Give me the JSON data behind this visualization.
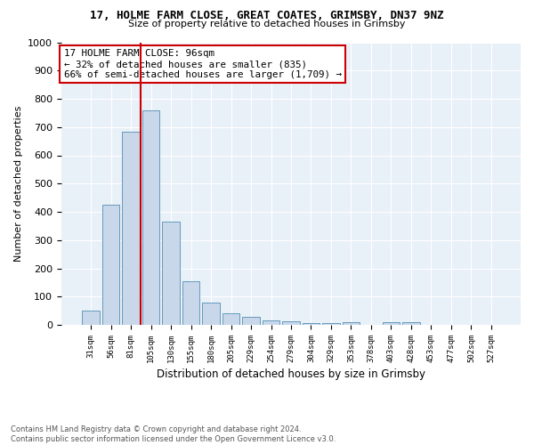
{
  "title1": "17, HOLME FARM CLOSE, GREAT COATES, GRIMSBY, DN37 9NZ",
  "title2": "Size of property relative to detached houses in Grimsby",
  "xlabel": "Distribution of detached houses by size in Grimsby",
  "ylabel": "Number of detached properties",
  "bar_labels": [
    "31sqm",
    "56sqm",
    "81sqm",
    "105sqm",
    "130sqm",
    "155sqm",
    "180sqm",
    "205sqm",
    "229sqm",
    "254sqm",
    "279sqm",
    "304sqm",
    "329sqm",
    "353sqm",
    "378sqm",
    "403sqm",
    "428sqm",
    "453sqm",
    "477sqm",
    "502sqm",
    "527sqm"
  ],
  "bar_values": [
    50,
    425,
    685,
    760,
    365,
    155,
    78,
    40,
    28,
    15,
    14,
    5,
    5,
    8,
    0,
    8,
    10,
    0,
    0,
    0,
    0
  ],
  "bar_color": "#c8d8ea",
  "bar_edge_color": "#6699bb",
  "vline_x": 2.5,
  "vline_color": "#cc0000",
  "annotation_text": "17 HOLME FARM CLOSE: 96sqm\n← 32% of detached houses are smaller (835)\n66% of semi-detached houses are larger (1,709) →",
  "annotation_box_color": "#ffffff",
  "annotation_box_edge": "#cc0000",
  "ylim": [
    0,
    1000
  ],
  "yticks": [
    0,
    100,
    200,
    300,
    400,
    500,
    600,
    700,
    800,
    900,
    1000
  ],
  "footnote": "Contains HM Land Registry data © Crown copyright and database right 2024.\nContains public sector information licensed under the Open Government Licence v3.0.",
  "plot_bg_color": "#e8f0f8"
}
